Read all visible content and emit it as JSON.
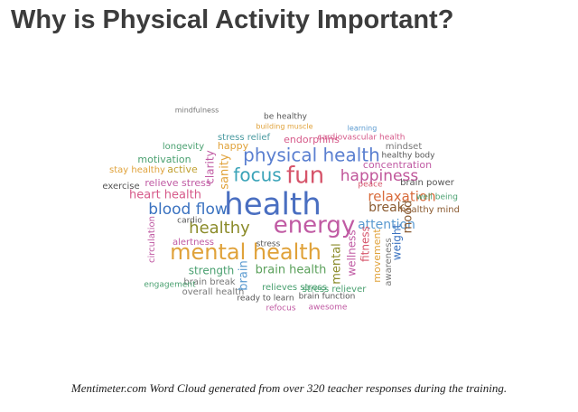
{
  "header": {
    "title": "Why is Physical Activity Important?"
  },
  "cloud": {
    "words": [
      {
        "text": "health",
        "color": "#4a6fc1"
      },
      {
        "text": "energy",
        "color": "#c05aa3"
      },
      {
        "text": "mental health",
        "color": "#e0a23a"
      },
      {
        "text": "fun",
        "color": "#d6546a"
      },
      {
        "text": "physical health",
        "color": "#5a7fd0"
      },
      {
        "text": "happiness",
        "color": "#c0569a"
      },
      {
        "text": "focus",
        "color": "#3aa3b8"
      },
      {
        "text": "blood flow",
        "color": "#3a72c0"
      },
      {
        "text": "healthy",
        "color": "#8b8b2a"
      },
      {
        "text": "heart health",
        "color": "#d65a8a"
      },
      {
        "text": "relaxation",
        "color": "#d86a3a"
      },
      {
        "text": "attention",
        "color": "#5a9ad0"
      },
      {
        "text": "break",
        "color": "#8a5a30"
      },
      {
        "text": "brain health",
        "color": "#5aa05a"
      },
      {
        "text": "strength",
        "color": "#4aa070"
      },
      {
        "text": "stress relief",
        "color": "#4a9aa0"
      },
      {
        "text": "endorphins",
        "color": "#d65a8a"
      },
      {
        "text": "cardiovascular health",
        "color": "#d65a8a"
      },
      {
        "text": "concentration",
        "color": "#c05aa3"
      },
      {
        "text": "mindset",
        "color": "#777777"
      },
      {
        "text": "motivation",
        "color": "#4aa070"
      },
      {
        "text": "active",
        "color": "#c0a030"
      },
      {
        "text": "relieve stress",
        "color": "#c05aa3"
      },
      {
        "text": "exercise",
        "color": "#555555"
      },
      {
        "text": "stay healthy",
        "color": "#e0a23a"
      },
      {
        "text": "longevity",
        "color": "#4aa070"
      },
      {
        "text": "happy",
        "color": "#e0a23a"
      },
      {
        "text": "clarity",
        "color": "#c05aa3"
      },
      {
        "text": "sanity",
        "color": "#e0a23a"
      },
      {
        "text": "alertness",
        "color": "#c05aa3"
      },
      {
        "text": "brain break",
        "color": "#777777"
      },
      {
        "text": "overall health",
        "color": "#777777"
      },
      {
        "text": "brain",
        "color": "#5a9ad0"
      },
      {
        "text": "mental",
        "color": "#8b8b2a"
      },
      {
        "text": "wellness",
        "color": "#c05aa3"
      },
      {
        "text": "fitness",
        "color": "#d6546a"
      },
      {
        "text": "movement",
        "color": "#e0a23a"
      },
      {
        "text": "weight",
        "color": "#3a72c0"
      },
      {
        "text": "mood",
        "color": "#8a5a30"
      },
      {
        "text": "awareness",
        "color": "#777777"
      },
      {
        "text": "stress",
        "color": "#555555"
      },
      {
        "text": "relieves stress",
        "color": "#4aa070"
      },
      {
        "text": "stress reliever",
        "color": "#4aa070"
      },
      {
        "text": "ready to learn",
        "color": "#555555"
      },
      {
        "text": "refocus",
        "color": "#c05aa3"
      },
      {
        "text": "brain function",
        "color": "#555555"
      },
      {
        "text": "awesome",
        "color": "#c05aa3"
      },
      {
        "text": "healthy mind",
        "color": "#8a5a30"
      },
      {
        "text": "well being",
        "color": "#4aa070"
      },
      {
        "text": "brain power",
        "color": "#555555"
      },
      {
        "text": "healthy body",
        "color": "#555555"
      },
      {
        "text": "peace",
        "color": "#d6546a"
      },
      {
        "text": "be healthy",
        "color": "#555555"
      },
      {
        "text": "building muscle",
        "color": "#e0a23a"
      },
      {
        "text": "learning",
        "color": "#5a9ad0"
      },
      {
        "text": "mindfulness",
        "color": "#777777"
      },
      {
        "text": "cardio",
        "color": "#555555"
      },
      {
        "text": "engagement",
        "color": "#4aa070"
      },
      {
        "text": "circulation",
        "color": "#c05aa3"
      }
    ]
  },
  "caption": {
    "text": "Mentimeter.com Word Cloud generated from over 320 teacher responses during the training."
  }
}
